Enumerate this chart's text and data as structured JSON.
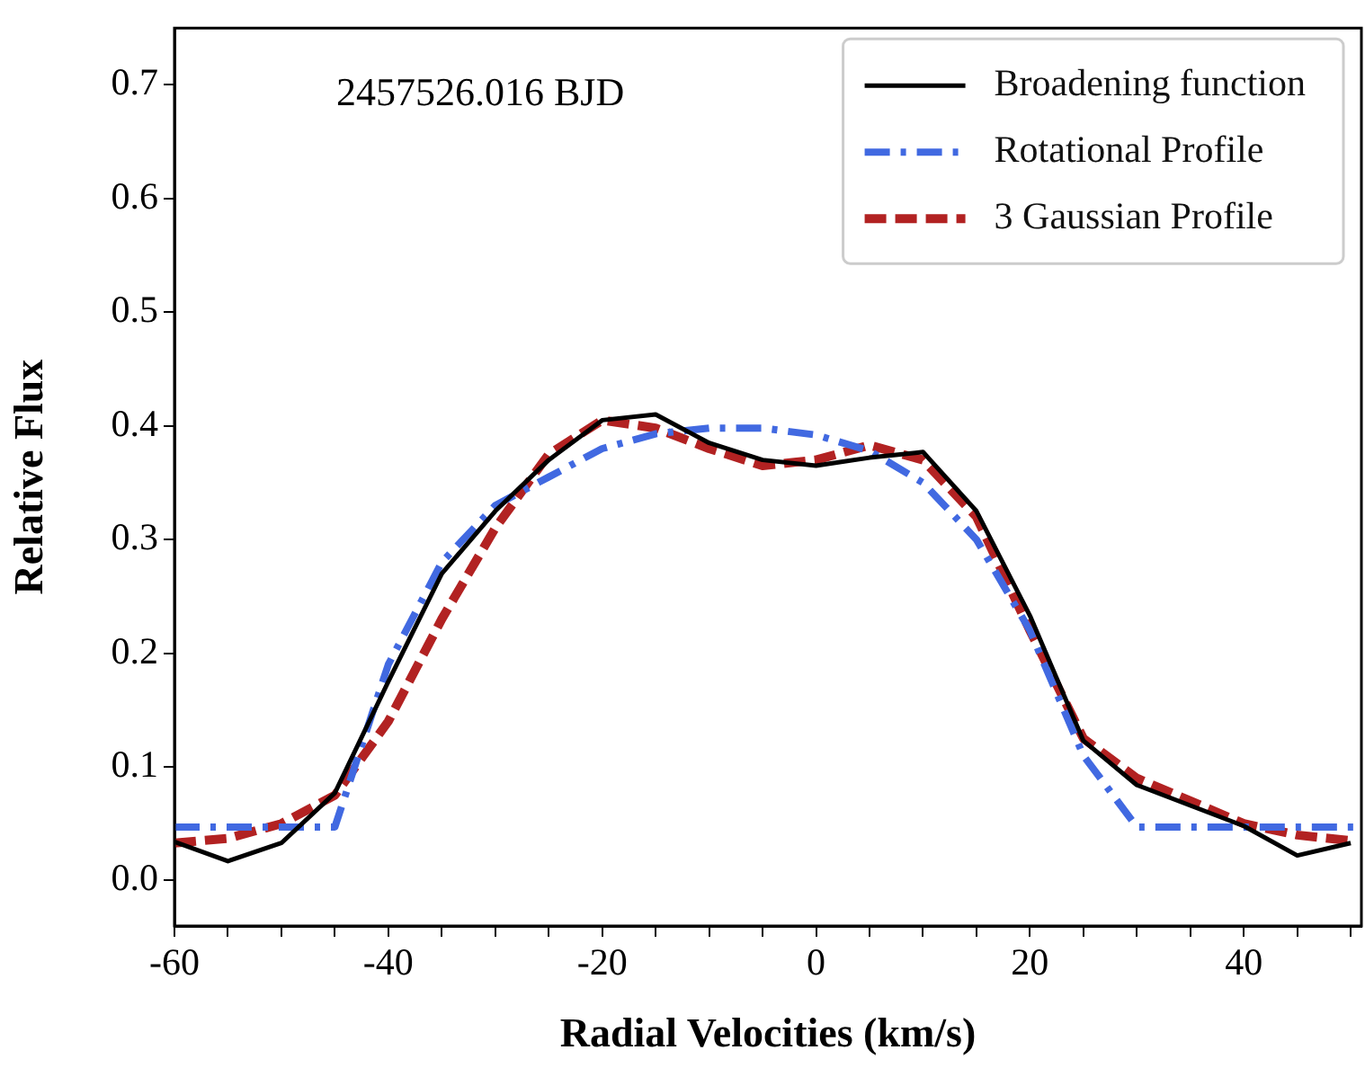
{
  "chart_data": {
    "type": "line",
    "xlabel": "Radial Velocities (km/s)",
    "ylabel": "Relative Flux",
    "annotations": [
      "2457526.016 BJD"
    ],
    "x": [
      -60,
      -55,
      -50,
      -45,
      -40,
      -35,
      -30,
      -25,
      -20,
      -15,
      -10,
      -5,
      0,
      5,
      10,
      15,
      20,
      25,
      30,
      35,
      40,
      45,
      50
    ],
    "series": [
      {
        "name": "Broadening function",
        "color": "#000000",
        "line_style": "solid",
        "values": [
          0.034,
          0.017,
          0.033,
          0.077,
          0.175,
          0.27,
          0.325,
          0.37,
          0.405,
          0.41,
          0.385,
          0.37,
          0.365,
          0.372,
          0.377,
          0.325,
          0.233,
          0.123,
          0.084,
          0.066,
          0.048,
          0.022,
          0.033
        ]
      },
      {
        "name": "Rotational Profile",
        "color": "#4169e1",
        "line_style": "dashdot",
        "x": [
          -60,
          -45,
          -40,
          -35,
          -30,
          -25,
          -20,
          -15,
          -10,
          -5,
          0,
          5,
          10,
          15,
          20,
          25,
          30,
          51
        ],
        "values": [
          0.047,
          0.047,
          0.19,
          0.28,
          0.33,
          0.355,
          0.38,
          0.393,
          0.398,
          0.398,
          0.392,
          0.378,
          0.35,
          0.3,
          0.22,
          0.11,
          0.047,
          0.047
        ]
      },
      {
        "name": "3 Gaussian Profile",
        "color": "#b22222",
        "line_style": "dashed",
        "values": [
          0.033,
          0.037,
          0.05,
          0.075,
          0.14,
          0.23,
          0.31,
          0.375,
          0.405,
          0.398,
          0.38,
          0.365,
          0.37,
          0.383,
          0.37,
          0.32,
          0.22,
          0.125,
          0.09,
          0.07,
          0.05,
          0.04,
          0.035
        ]
      }
    ],
    "xlim": [
      -60,
      51
    ],
    "ylim": [
      -0.04,
      0.75
    ],
    "xticks": [
      -60,
      {
        "value": -55,
        "label": null
      },
      {
        "value": -50,
        "label": null
      },
      {
        "value": -45,
        "label": null
      },
      -40,
      {
        "value": -35,
        "label": null
      },
      {
        "value": -30,
        "label": null
      },
      {
        "value": -25,
        "label": null
      },
      -20,
      {
        "value": -15,
        "label": null
      },
      {
        "value": -10,
        "label": null
      },
      {
        "value": -5,
        "label": null
      },
      0,
      {
        "value": 5,
        "label": null
      },
      {
        "value": 10,
        "label": null
      },
      {
        "value": 15,
        "label": null
      },
      20,
      {
        "value": 25,
        "label": null
      },
      {
        "value": 30,
        "label": null
      },
      {
        "value": 35,
        "label": null
      },
      40,
      {
        "value": 45,
        "label": null
      },
      {
        "value": 50,
        "label": null
      }
    ],
    "yticks": [
      {
        "value": 0,
        "label": "0.0"
      },
      0.1,
      0.2,
      0.3,
      0.4,
      0.5,
      0.6,
      0.7
    ],
    "grid": false,
    "legend": "top right",
    "marker": "none"
  }
}
